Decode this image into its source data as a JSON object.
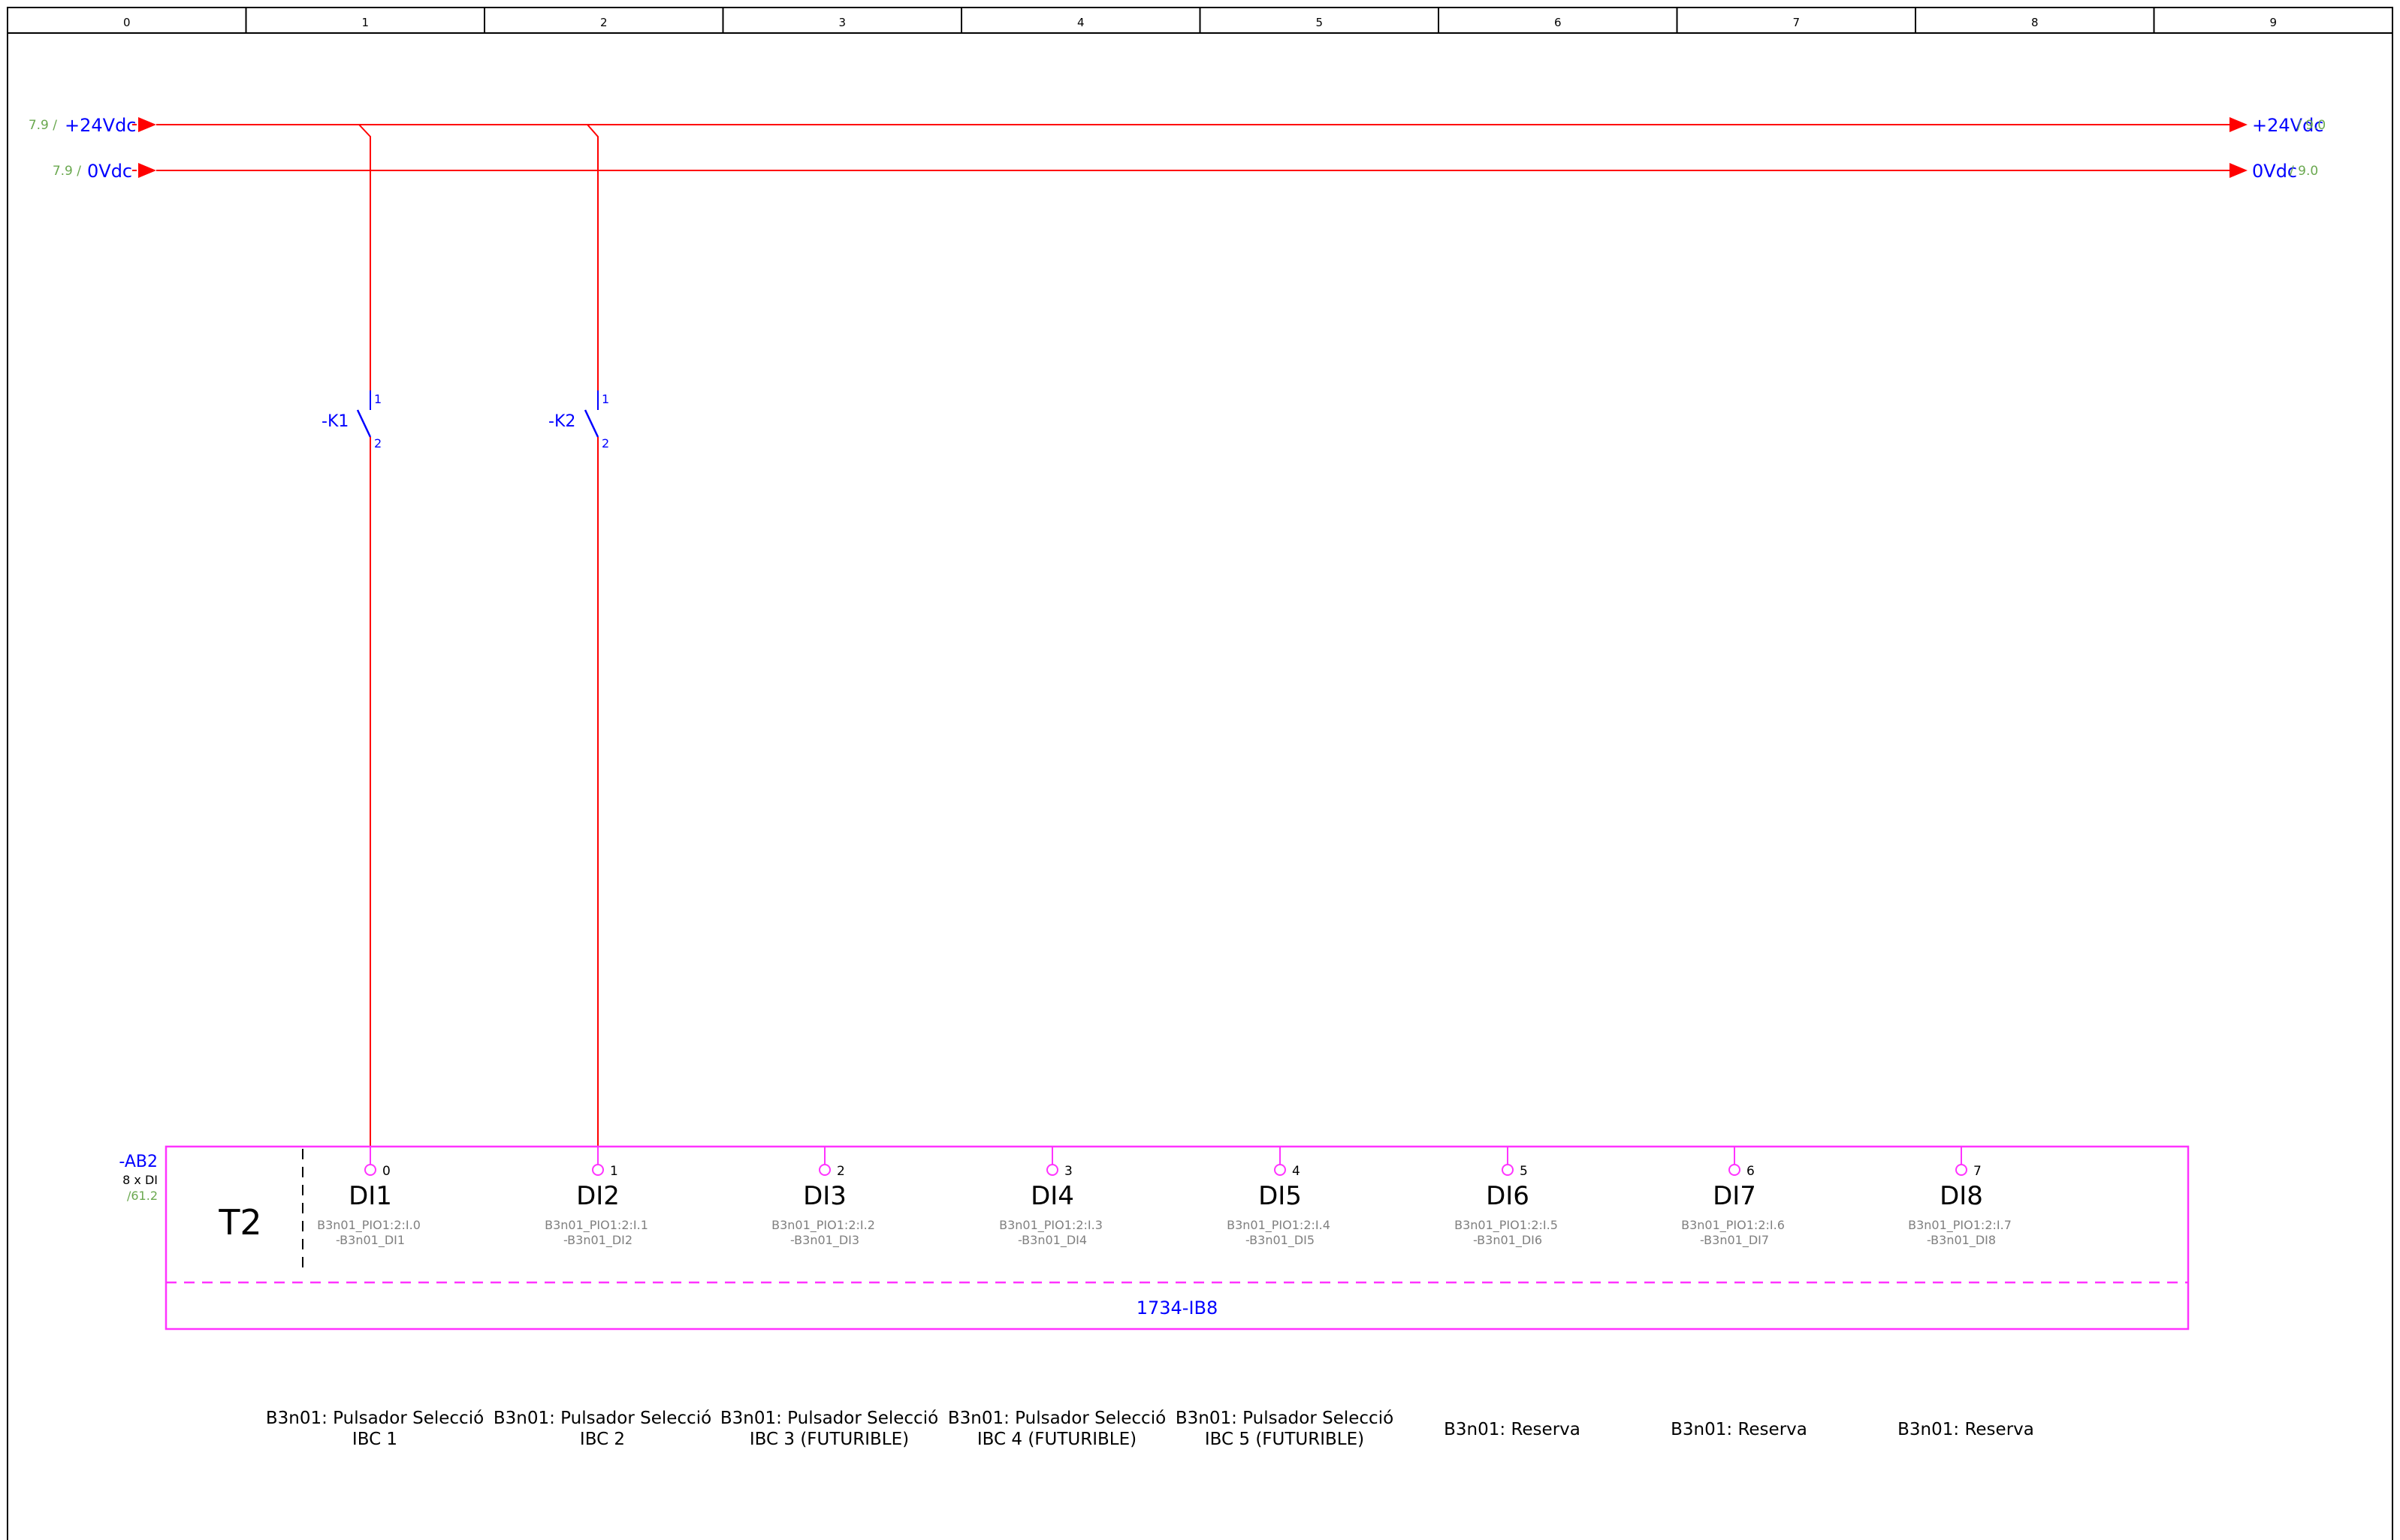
{
  "frame": {
    "columns": [
      "0",
      "1",
      "2",
      "3",
      "4",
      "5",
      "6",
      "7",
      "8",
      "9"
    ]
  },
  "rails": [
    {
      "name": "+24Vdc",
      "source_ref": "7.9 /",
      "dest_ref": "/ 9.0",
      "color": "#ff0000"
    },
    {
      "name": "0Vdc",
      "source_ref": "7.9 /",
      "dest_ref": "/ 9.0",
      "color": "#ff0000"
    }
  ],
  "contacts": [
    {
      "tag": "-K1",
      "pin_top": "1",
      "pin_bottom": "2"
    },
    {
      "tag": "-K2",
      "pin_top": "1",
      "pin_bottom": "2"
    }
  ],
  "module": {
    "tag": "-AB2",
    "type_line": "8 x DI",
    "ref": "/61.2",
    "slot": "T2",
    "part": "1734-IB8",
    "inputs": [
      {
        "pin": "0",
        "name": "DI1",
        "addr": "B3n01_PIO1:2:I.0",
        "tag": "-B3n01_DI1",
        "desc1": "B3n01: Pulsador Selecció",
        "desc2": "IBC 1"
      },
      {
        "pin": "1",
        "name": "DI2",
        "addr": "B3n01_PIO1:2:I.1",
        "tag": "-B3n01_DI2",
        "desc1": "B3n01: Pulsador Selecció",
        "desc2": "IBC 2"
      },
      {
        "pin": "2",
        "name": "DI3",
        "addr": "B3n01_PIO1:2:I.2",
        "tag": "-B3n01_DI3",
        "desc1": "B3n01: Pulsador Selecció",
        "desc2": "IBC 3 (FUTURIBLE)"
      },
      {
        "pin": "3",
        "name": "DI4",
        "addr": "B3n01_PIO1:2:I.3",
        "tag": "-B3n01_DI4",
        "desc1": "B3n01: Pulsador Selecció",
        "desc2": "IBC 4 (FUTURIBLE)"
      },
      {
        "pin": "4",
        "name": "DI5",
        "addr": "B3n01_PIO1:2:I.4",
        "tag": "-B3n01_DI5",
        "desc1": "B3n01: Pulsador Selecció",
        "desc2": "IBC 5 (FUTURIBLE)"
      },
      {
        "pin": "5",
        "name": "DI6",
        "addr": "B3n01_PIO1:2:I.5",
        "tag": "-B3n01_DI6",
        "desc1": "B3n01: Reserva",
        "desc2": ""
      },
      {
        "pin": "6",
        "name": "DI7",
        "addr": "B3n01_PIO1:2:I.6",
        "tag": "-B3n01_DI7",
        "desc1": "B3n01: Reserva",
        "desc2": ""
      },
      {
        "pin": "7",
        "name": "DI8",
        "addr": "B3n01_PIO1:2:I.7",
        "tag": "-B3n01_DI8",
        "desc1": "B3n01: Reserva",
        "desc2": ""
      }
    ]
  },
  "colors": {
    "frame": "#000000",
    "wire": "#ff0000",
    "module": "#ff33ff",
    "tag": "#0000ff",
    "ref": "#6aa84f",
    "addr": "#808080",
    "text": "#000000"
  }
}
